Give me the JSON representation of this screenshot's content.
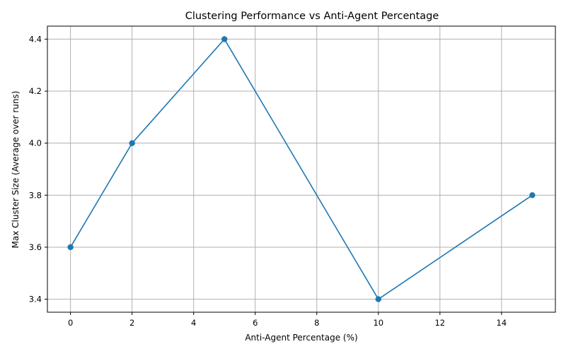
{
  "chart_data": {
    "type": "line",
    "title": "Clustering Performance vs Anti-Agent Percentage",
    "xlabel": "Anti-Agent Percentage (%)",
    "ylabel": "Max Cluster Size (Average over runs)",
    "x": [
      0,
      2,
      5,
      10,
      15
    ],
    "series": [
      {
        "values": [
          3.6,
          4.0,
          4.4,
          3.4,
          3.8
        ],
        "color": "#1f77b4",
        "marker": "circle"
      }
    ],
    "xlim": [
      -0.75,
      15.75
    ],
    "ylim": [
      3.35,
      4.45
    ],
    "xticks": [
      0,
      2,
      4,
      6,
      8,
      10,
      12,
      14
    ],
    "xtick_labels": [
      "0",
      "2",
      "4",
      "6",
      "8",
      "10",
      "12",
      "14"
    ],
    "yticks": [
      3.4,
      3.6,
      3.8,
      4.0,
      4.2,
      4.4
    ],
    "ytick_labels": [
      "3.4",
      "3.6",
      "3.8",
      "4.0",
      "4.2",
      "4.4"
    ],
    "grid": true,
    "legend": "none"
  }
}
